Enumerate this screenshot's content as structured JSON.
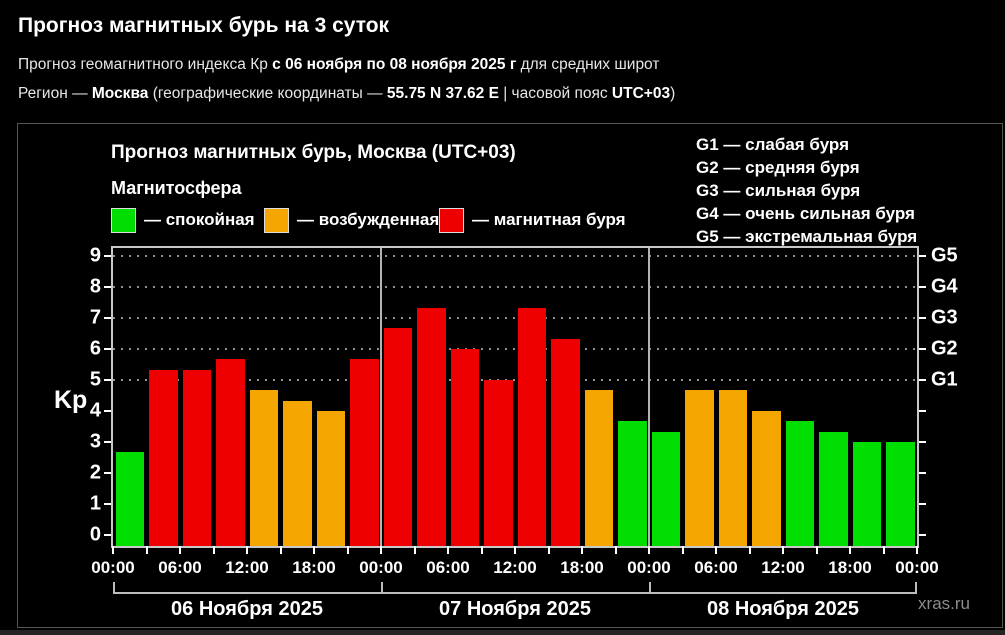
{
  "header": {
    "title": "Прогноз магнитных бурь на 3 суток",
    "line2": {
      "p1": "Прогноз геомагнитного индекса Кр ",
      "b1": "с 06 ноября по 08 ноября 2025 г",
      "p2": " для средних широт"
    },
    "line3": {
      "p1": "Регион — ",
      "b1": "Москва",
      "p2": " (географические координаты — ",
      "b2": "55.75 N 37.62 E",
      "p3": " | часовой пояс ",
      "b3": "UTC+03",
      "p4": ")"
    }
  },
  "panel": {
    "chart_title": "Прогноз магнитных бурь, Москва (UTC+03)",
    "legend_title": "Магнитосфера",
    "g_scale": [
      "G1 — слабая буря",
      "G2 — средняя буря",
      "G3 — сильная буря",
      "G4 — очень сильная буря",
      "G5 — экстремальная буря"
    ],
    "watermark": "xras.ru"
  },
  "chart_data": {
    "type": "bar",
    "title": "Прогноз магнитных бурь, Москва (UTC+03)",
    "ylabel": "Kp",
    "ylim": [
      0,
      9
    ],
    "y_ticks": [
      0,
      1,
      2,
      3,
      4,
      5,
      6,
      7,
      8,
      9
    ],
    "gridlines_at": [
      5,
      6,
      7,
      8,
      9
    ],
    "right_axis_labels": {
      "5": "G1",
      "6": "G2",
      "7": "G3",
      "8": "G4",
      "9": "G5"
    },
    "grid": "dotted horizontal at storm levels only",
    "legend_position": "top-left",
    "legend_entries": [
      "— спокойная",
      "— возбужденная",
      "— магнитная буря"
    ],
    "level_colors": {
      "quiet": "#00dd00",
      "excited": "#f5a500",
      "storm": "#ee0000"
    },
    "x_tick_interval_hours": 3,
    "x_labels": [
      "00:00",
      "06:00",
      "12:00",
      "18:00",
      "00:00",
      "06:00",
      "12:00",
      "18:00",
      "00:00",
      "06:00",
      "12:00",
      "18:00",
      "00:00"
    ],
    "days": [
      {
        "date": "06 Ноября 2025",
        "hours": [
          "00:00",
          "03:00",
          "06:00",
          "09:00",
          "12:00",
          "15:00",
          "18:00",
          "21:00"
        ],
        "values": [
          2.67,
          5.33,
          5.33,
          5.67,
          4.67,
          4.33,
          4.0,
          5.67
        ],
        "levels": [
          "quiet",
          "storm",
          "storm",
          "storm",
          "excited",
          "excited",
          "excited",
          "storm"
        ]
      },
      {
        "date": "07 Ноября 2025",
        "hours": [
          "00:00",
          "03:00",
          "06:00",
          "09:00",
          "12:00",
          "15:00",
          "18:00",
          "21:00"
        ],
        "values": [
          6.67,
          7.33,
          6.0,
          5.0,
          7.33,
          6.33,
          4.67,
          3.67
        ],
        "levels": [
          "storm",
          "storm",
          "storm",
          "storm",
          "storm",
          "storm",
          "excited",
          "quiet"
        ]
      },
      {
        "date": "08 Ноября 2025",
        "hours": [
          "00:00",
          "03:00",
          "06:00",
          "09:00",
          "12:00",
          "15:00",
          "18:00",
          "21:00"
        ],
        "values": [
          3.33,
          4.67,
          4.67,
          4.0,
          3.67,
          3.33,
          3.0,
          3.0
        ],
        "levels": [
          "quiet",
          "excited",
          "excited",
          "excited",
          "quiet",
          "quiet",
          "quiet",
          "quiet"
        ]
      }
    ]
  }
}
